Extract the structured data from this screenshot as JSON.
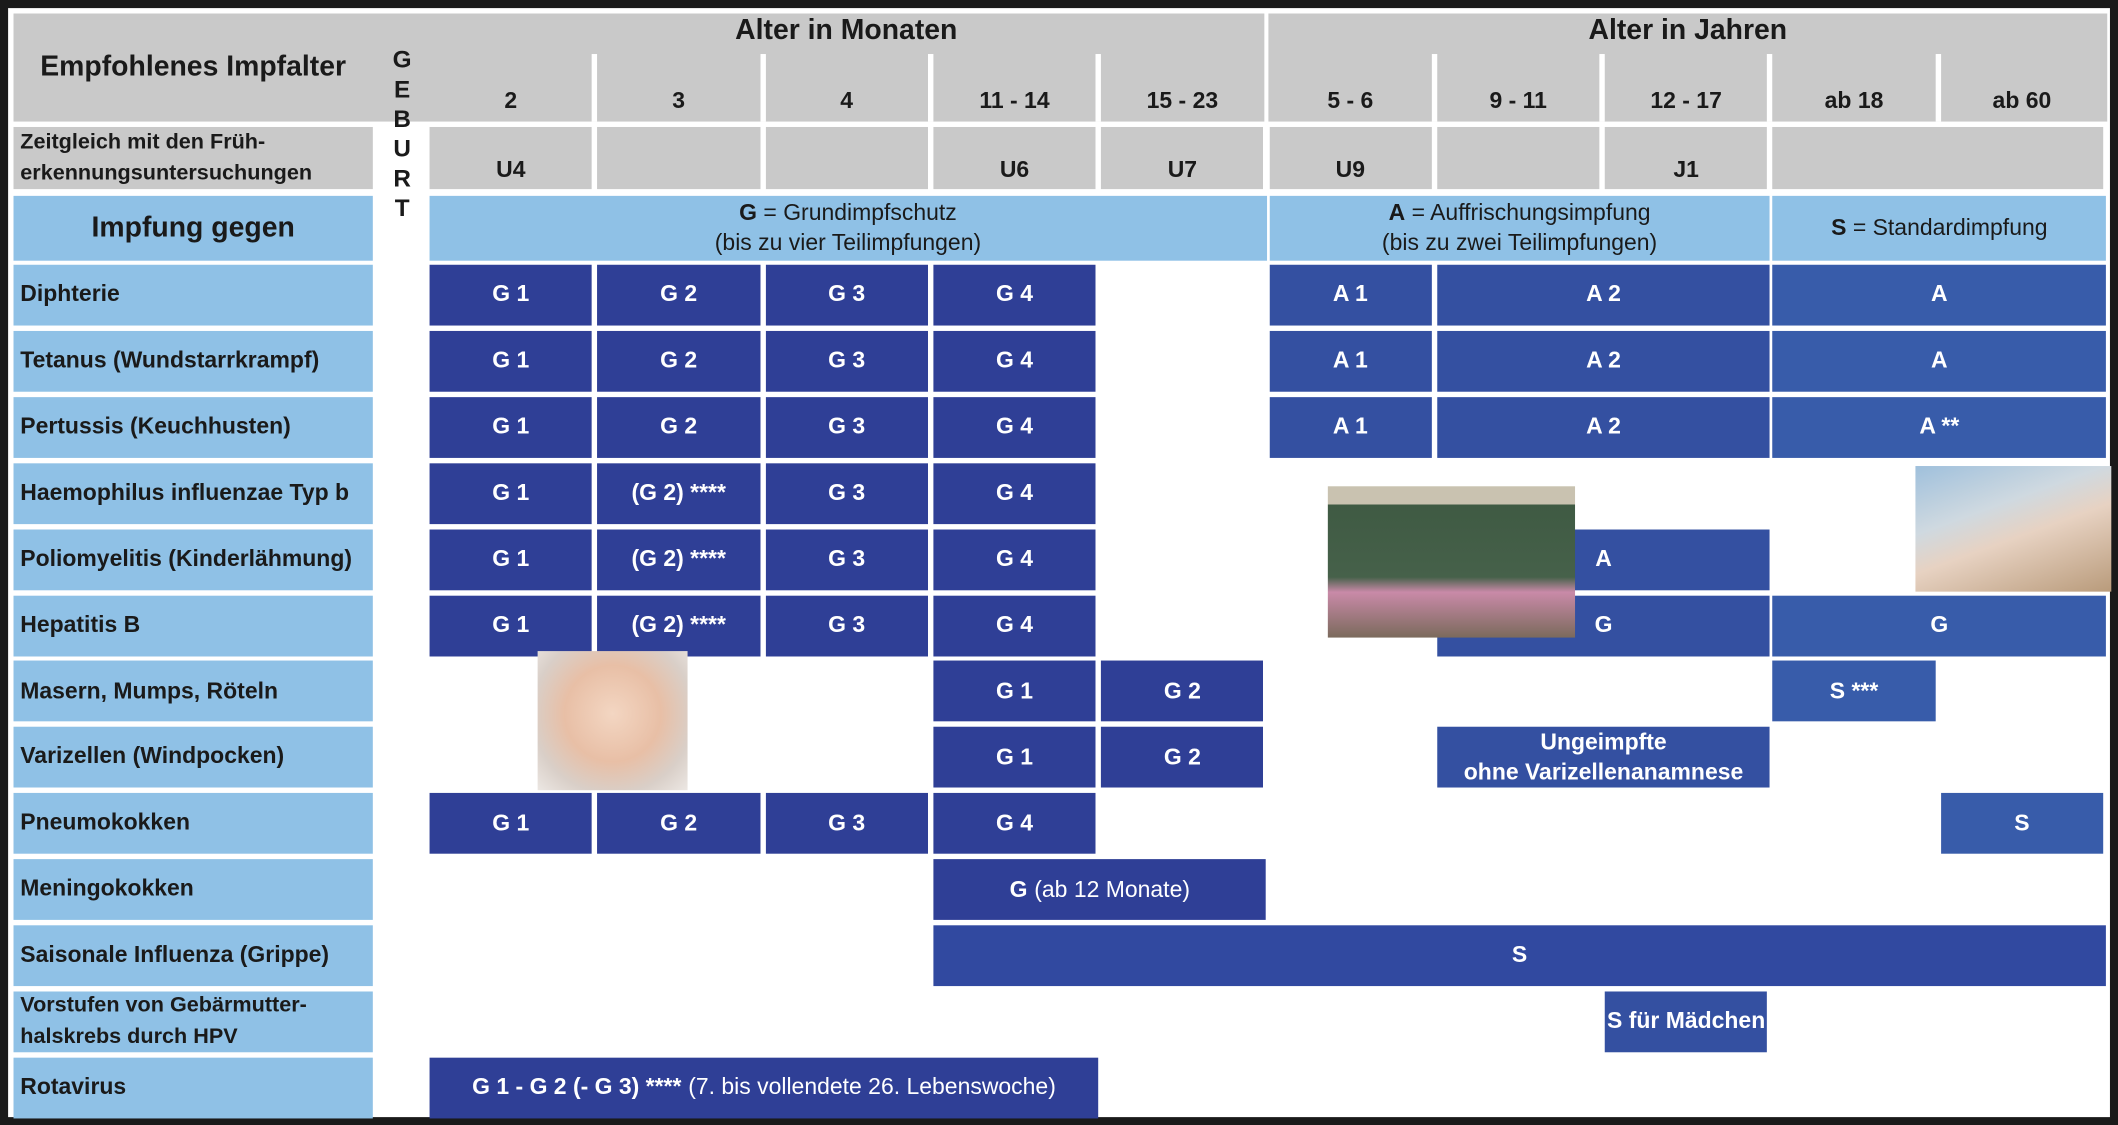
{
  "header": {
    "title": "Empfohlenes Impfalter",
    "months_heading": "Alter in Monaten",
    "years_heading": "Alter in Jahren",
    "checkup_label": "Zeitgleich mit den Früh-\nerkennungsuntersuchungen",
    "birth": "GEBURT",
    "vaccination_label": "Impfung gegen"
  },
  "columns": [
    "2",
    "3",
    "4",
    "11 - 14",
    "15 - 23",
    "5 - 6",
    "9 - 11",
    "12 - 17",
    "ab 18",
    "ab 60"
  ],
  "checkups": [
    "U4",
    null,
    null,
    "U6",
    "U7",
    "U9",
    null,
    "J1",
    null,
    null
  ],
  "legend": [
    {
      "letter": "G",
      "text": "= Grundimpfschutz",
      "note": "(bis zu vier Teilimpfungen)"
    },
    {
      "letter": "A",
      "text": "= Auffrischungsimpfung",
      "note": "(bis zu zwei Teilimpfungen)"
    },
    {
      "letter": "S",
      "text": "= Standardimpfung"
    }
  ],
  "rows": [
    {
      "label": "Diphterie",
      "cells": [
        {
          "text": "G 1"
        },
        {
          "text": "G 2"
        },
        {
          "text": "G 3"
        },
        {
          "text": "G 4"
        },
        {
          "text": "A 1"
        },
        {
          "text": "A 2"
        },
        {
          "text": "A"
        }
      ]
    },
    {
      "label": "Tetanus (Wundstarrkrampf)",
      "cells": [
        {
          "text": "G 1"
        },
        {
          "text": "G 2"
        },
        {
          "text": "G 3"
        },
        {
          "text": "G 4"
        },
        {
          "text": "A 1"
        },
        {
          "text": "A 2"
        },
        {
          "text": "A"
        }
      ]
    },
    {
      "label": "Pertussis (Keuchhusten)",
      "cells": [
        {
          "text": "G 1"
        },
        {
          "text": "G 2"
        },
        {
          "text": "G 3"
        },
        {
          "text": "G 4"
        },
        {
          "text": "A 1"
        },
        {
          "text": "A 2"
        },
        {
          "text": "A **"
        }
      ]
    },
    {
      "label": "Haemophilus influenzae Typ b",
      "cells": [
        {
          "text": "G 1"
        },
        {
          "text": "(G 2) ****"
        },
        {
          "text": "G 3"
        },
        {
          "text": "G 4"
        }
      ]
    },
    {
      "label": "Poliomyelitis (Kinderlähmung)",
      "cells": [
        {
          "text": "G 1"
        },
        {
          "text": "(G 2) ****"
        },
        {
          "text": "G 3"
        },
        {
          "text": "G 4"
        },
        {
          "text": "A"
        }
      ]
    },
    {
      "label": "Hepatitis B",
      "cells": [
        {
          "text": "G 1"
        },
        {
          "text": "(G 2) ****"
        },
        {
          "text": "G 3"
        },
        {
          "text": "G 4"
        },
        {
          "text": "G"
        },
        {
          "text": "G"
        }
      ]
    },
    {
      "label": "Masern, Mumps, Röteln",
      "cells": [
        {
          "text": "G 1"
        },
        {
          "text": "G 2"
        },
        {
          "text": "S ***"
        }
      ]
    },
    {
      "label": "Varizellen (Windpocken)",
      "cells": [
        {
          "text": "G 1"
        },
        {
          "text": "G 2"
        },
        {
          "text": "Ungeimpfte\nohne Varizellenanamnese"
        }
      ]
    },
    {
      "label": "Pneumokokken",
      "cells": [
        {
          "text": "G 1"
        },
        {
          "text": "G 2"
        },
        {
          "text": "G 3"
        },
        {
          "text": "G 4"
        },
        {
          "text": "S"
        }
      ]
    },
    {
      "label": "Meningokokken",
      "cells": [
        {
          "text": "G",
          "note": "(ab 12 Monate)"
        }
      ]
    },
    {
      "label": "Saisonale Influenza (Grippe)",
      "cells": [
        {
          "text": "S"
        }
      ]
    },
    {
      "label": "Vorstufen von Gebärmutter-\nhalskrebs durch HPV",
      "cells": [
        {
          "text": "S für Mädchen"
        }
      ]
    },
    {
      "label": "Rotavirus",
      "cells": [
        {
          "text": "G 1 - G 2 (- G 3) ****",
          "note": "(7. bis vollendete 26. Lebenswoche)"
        }
      ]
    }
  ]
}
